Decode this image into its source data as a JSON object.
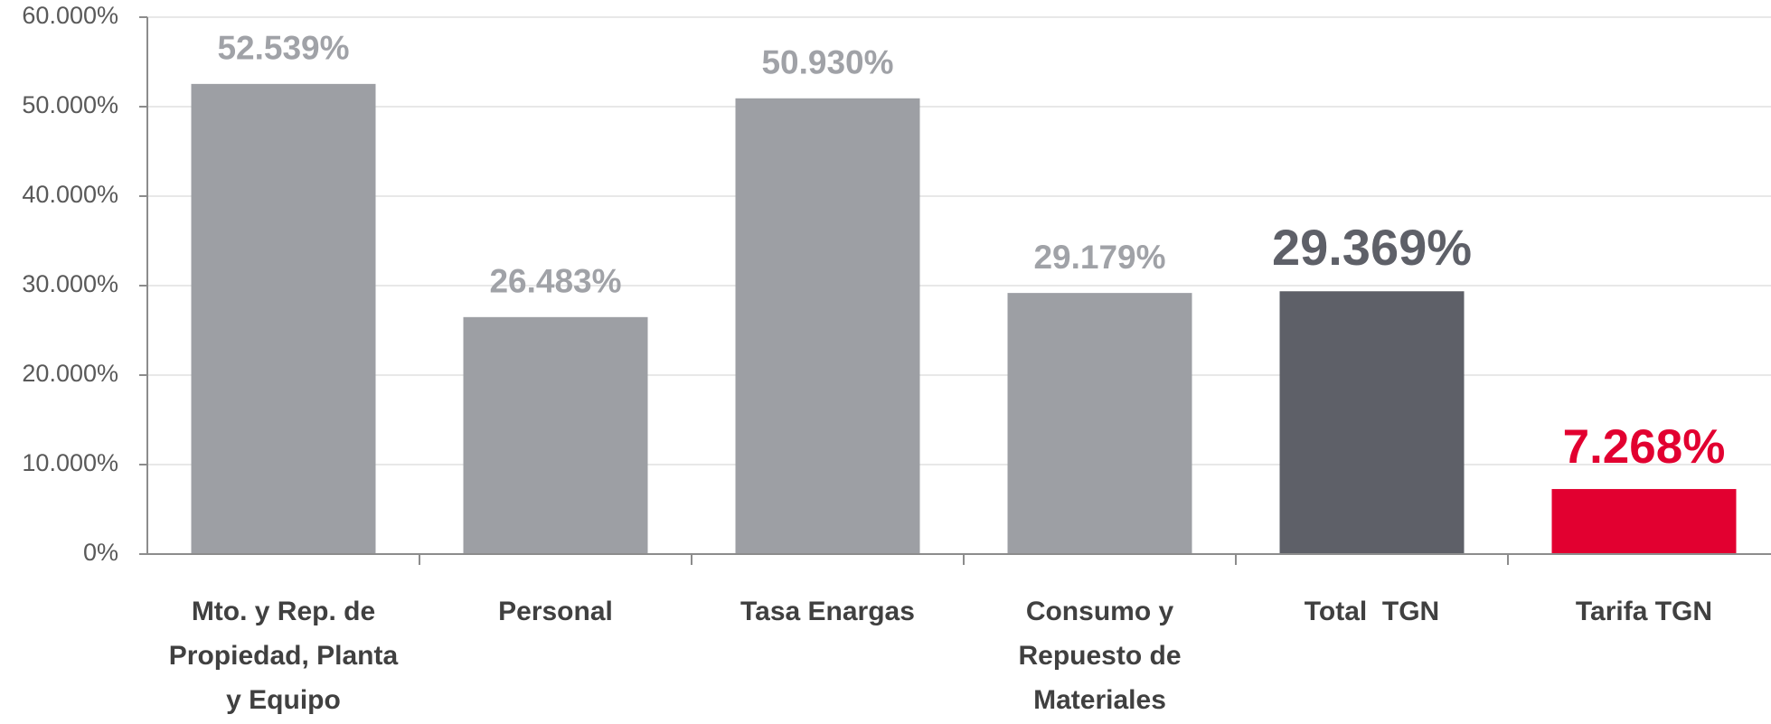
{
  "chart_data": {
    "type": "bar",
    "categories": [
      [
        "Mto. y Rep. de",
        "Propiedad, Planta",
        "y Equipo"
      ],
      [
        "Personal"
      ],
      [
        "Tasa Enargas"
      ],
      [
        "Consumo y",
        "Repuesto de",
        "Materiales"
      ],
      [
        "Total  TGN"
      ],
      [
        "Tarifa TGN"
      ]
    ],
    "values": [
      52.539,
      26.483,
      50.93,
      29.179,
      29.369,
      7.268
    ],
    "value_labels": [
      "52.539%",
      "26.483%",
      "50.930%",
      "29.179%",
      "29.369%",
      "7.268%"
    ],
    "colors": [
      "#9d9fa4",
      "#9d9fa4",
      "#9d9fa4",
      "#9d9fa4",
      "#5e6068",
      "#e20030"
    ],
    "value_label_colors": [
      "#a0a2a7",
      "#a0a2a7",
      "#a0a2a7",
      "#a0a2a7",
      "#5e6068",
      "#e20030"
    ],
    "ylim": [
      0,
      60
    ],
    "yticks": [
      {
        "value": 0,
        "label": "0%"
      },
      {
        "value": 10,
        "label": "10.000%"
      },
      {
        "value": 20,
        "label": "20.000%"
      },
      {
        "value": 30,
        "label": "30.000%"
      },
      {
        "value": 40,
        "label": "40.000%"
      },
      {
        "value": 50,
        "label": "50.000%"
      },
      {
        "value": 60,
        "label": "60.000%"
      }
    ],
    "grid": true
  }
}
